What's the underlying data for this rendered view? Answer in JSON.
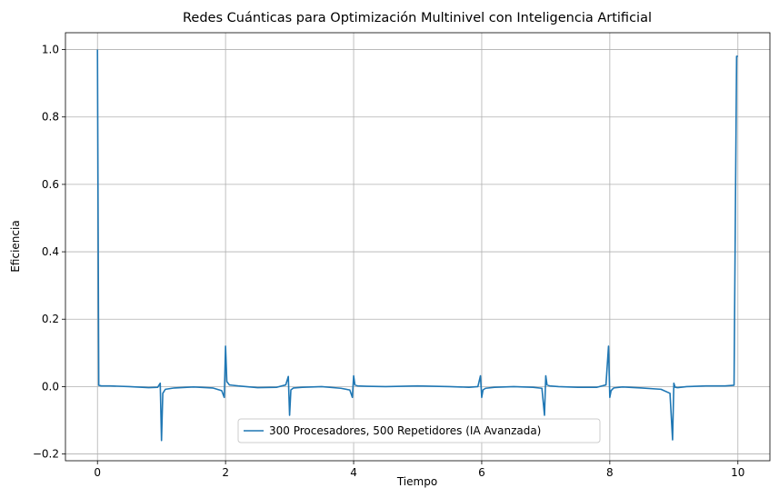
{
  "chart_data": {
    "type": "line",
    "title": "Redes Cuánticas para Optimización Multinivel con Inteligencia Artificial",
    "xlabel": "Tiempo",
    "ylabel": "Eficiencia",
    "xlim": [
      -0.5,
      10.5
    ],
    "ylim": [
      -0.22,
      1.05
    ],
    "xticks": [
      0,
      2,
      4,
      6,
      8,
      10
    ],
    "yticks": [
      -0.2,
      0.0,
      0.2,
      0.4,
      0.6,
      0.8,
      1.0
    ],
    "xtick_labels": [
      "0",
      "2",
      "4",
      "6",
      "8",
      "10"
    ],
    "ytick_labels": [
      "−0.2",
      "0.0",
      "0.2",
      "0.4",
      "0.6",
      "0.8",
      "1.0"
    ],
    "grid": true,
    "legend_position": "bottom-center",
    "series": [
      {
        "name": "300 Procesadores, 500 Repetidores (IA Avanzada)",
        "color": "#1f77b4",
        "x": [
          0.0,
          0.02,
          0.06,
          0.2,
          0.5,
          0.8,
          0.94,
          0.98,
          1.0,
          1.02,
          1.06,
          1.2,
          1.5,
          1.8,
          1.94,
          1.98,
          2.0,
          2.02,
          2.06,
          2.2,
          2.5,
          2.8,
          2.94,
          2.98,
          3.0,
          3.02,
          3.06,
          3.2,
          3.5,
          3.8,
          3.94,
          3.98,
          4.0,
          4.02,
          4.06,
          4.2,
          4.5,
          5.0,
          5.5,
          5.8,
          5.94,
          5.98,
          6.0,
          6.02,
          6.06,
          6.2,
          6.5,
          6.8,
          6.94,
          6.98,
          7.0,
          7.02,
          7.06,
          7.2,
          7.5,
          7.8,
          7.94,
          7.98,
          8.0,
          8.02,
          8.06,
          8.2,
          8.5,
          8.8,
          8.94,
          8.98,
          9.0,
          9.02,
          9.06,
          9.2,
          9.5,
          9.8,
          9.94,
          9.98,
          10.0
        ],
        "y": [
          1.0,
          0.004,
          0.002,
          0.002,
          0.0,
          -0.003,
          -0.002,
          0.01,
          -0.16,
          -0.02,
          -0.008,
          -0.004,
          -0.001,
          -0.004,
          -0.012,
          -0.032,
          0.12,
          0.015,
          0.005,
          0.002,
          -0.003,
          -0.002,
          0.005,
          0.03,
          -0.085,
          -0.01,
          -0.004,
          -0.002,
          0.0,
          -0.005,
          -0.01,
          -0.032,
          0.032,
          0.005,
          0.002,
          0.001,
          0.0,
          0.002,
          0.0,
          -0.002,
          0.0,
          0.032,
          -0.032,
          -0.01,
          -0.005,
          -0.002,
          0.0,
          -0.002,
          -0.005,
          -0.085,
          0.032,
          0.005,
          0.002,
          0.0,
          -0.002,
          -0.002,
          0.005,
          0.12,
          -0.032,
          -0.012,
          -0.004,
          -0.001,
          -0.004,
          -0.008,
          -0.02,
          -0.158,
          0.01,
          -0.002,
          -0.003,
          0.0,
          0.002,
          0.002,
          0.004,
          0.98,
          0.98
        ]
      }
    ]
  }
}
